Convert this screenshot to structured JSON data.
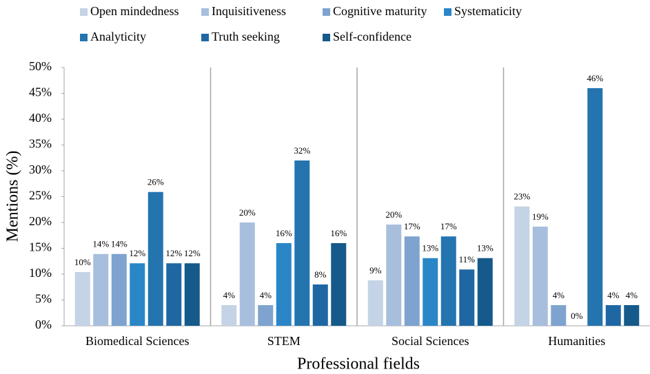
{
  "chart_data": {
    "type": "bar",
    "x_label": "Professional fields",
    "y_label": "Mentions (%)",
    "categories": [
      "Biomedical Sciences",
      "STEM",
      "Social Sciences",
      "Humanities"
    ],
    "series": [
      {
        "name": "Open mindedness",
        "color": "#c5d3e6",
        "values": [
          10.4,
          4,
          8.8,
          23.1
        ],
        "value_labels": [
          "10%",
          "4%",
          "9%",
          "23%"
        ]
      },
      {
        "name": "Inquisitiveness",
        "color": "#a8bedd",
        "values": [
          13.9,
          20,
          19.6,
          19.2
        ],
        "value_labels": [
          "14%",
          "20%",
          "20%",
          "19%"
        ]
      },
      {
        "name": "Cognitive maturity",
        "color": "#7ea3cf",
        "values": [
          13.9,
          4,
          17.3,
          4
        ],
        "value_labels": [
          "14%",
          "4%",
          "17%",
          "4%"
        ]
      },
      {
        "name": "Systematicity",
        "color": "#2a86c7",
        "values": [
          12.1,
          16,
          13.1,
          0
        ],
        "value_labels": [
          "12%",
          "16%",
          "13%",
          "0%"
        ]
      },
      {
        "name": "Analyticity",
        "color": "#2474b0",
        "values": [
          25.9,
          32,
          17.3,
          46
        ],
        "value_labels": [
          "26%",
          "32%",
          "17%",
          "46%"
        ]
      },
      {
        "name": "Truth seeking",
        "color": "#1f67a3",
        "values": [
          12.1,
          8,
          10.9,
          4
        ],
        "value_labels": [
          "12%",
          "8%",
          "11%",
          "4%"
        ]
      },
      {
        "name": "Self-confidence",
        "color": "#155a8a",
        "values": [
          12.1,
          16,
          13.1,
          4
        ],
        "value_labels": [
          "12%",
          "16%",
          "13%",
          "4%"
        ]
      }
    ],
    "ylim": [
      0,
      50
    ],
    "yticks": [
      {
        "value": 0,
        "label": "0%"
      },
      {
        "value": 5,
        "label": "5%"
      },
      {
        "value": 10,
        "label": "10%"
      },
      {
        "value": 15,
        "label": "15%"
      },
      {
        "value": 20,
        "label": "20%"
      },
      {
        "value": 25,
        "label": "25%"
      },
      {
        "value": 30,
        "label": "30%"
      },
      {
        "value": 35,
        "label": "35%"
      },
      {
        "value": 40,
        "label": "40%"
      },
      {
        "value": 45,
        "label": "45%"
      },
      {
        "value": 50,
        "label": "50%"
      }
    ],
    "legend": "top"
  }
}
